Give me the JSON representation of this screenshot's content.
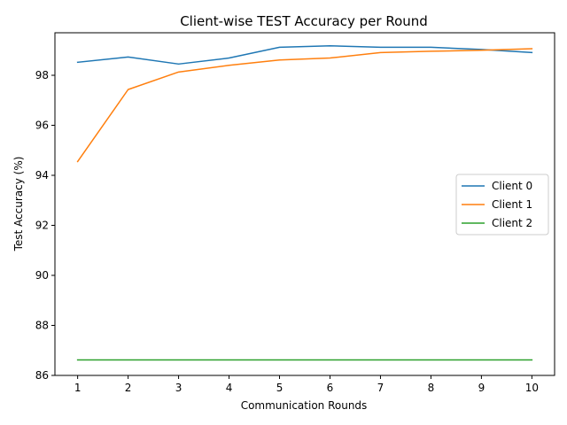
{
  "chart_data": {
    "type": "line",
    "title": "Client-wise TEST Accuracy per Round",
    "xlabel": "Communication Rounds",
    "ylabel": "Test Accuracy (%)",
    "x": [
      1,
      2,
      3,
      4,
      5,
      6,
      7,
      8,
      9,
      10
    ],
    "xticks": [
      "1",
      "2",
      "3",
      "4",
      "5",
      "6",
      "7",
      "8",
      "9",
      "10"
    ],
    "yticks": [
      "86",
      "88",
      "90",
      "92",
      "94",
      "96",
      "98"
    ],
    "ylim": [
      86,
      99.7
    ],
    "xlim": [
      0.55,
      10.45
    ],
    "grid": false,
    "legend_position": "center-right",
    "series": [
      {
        "name": "Client 0",
        "color": "#1f77b4",
        "values": [
          98.52,
          98.73,
          98.45,
          98.69,
          99.12,
          99.18,
          99.12,
          99.12,
          99.03,
          98.91
        ]
      },
      {
        "name": "Client 1",
        "color": "#ff7f0e",
        "values": [
          94.55,
          97.43,
          98.13,
          98.4,
          98.61,
          98.69,
          98.91,
          98.96,
          99.0,
          99.06
        ]
      },
      {
        "name": "Client 2",
        "color": "#2ca02c",
        "values": [
          86.62,
          86.62,
          86.62,
          86.62,
          86.62,
          86.62,
          86.62,
          86.62,
          86.62,
          86.62
        ]
      }
    ]
  }
}
